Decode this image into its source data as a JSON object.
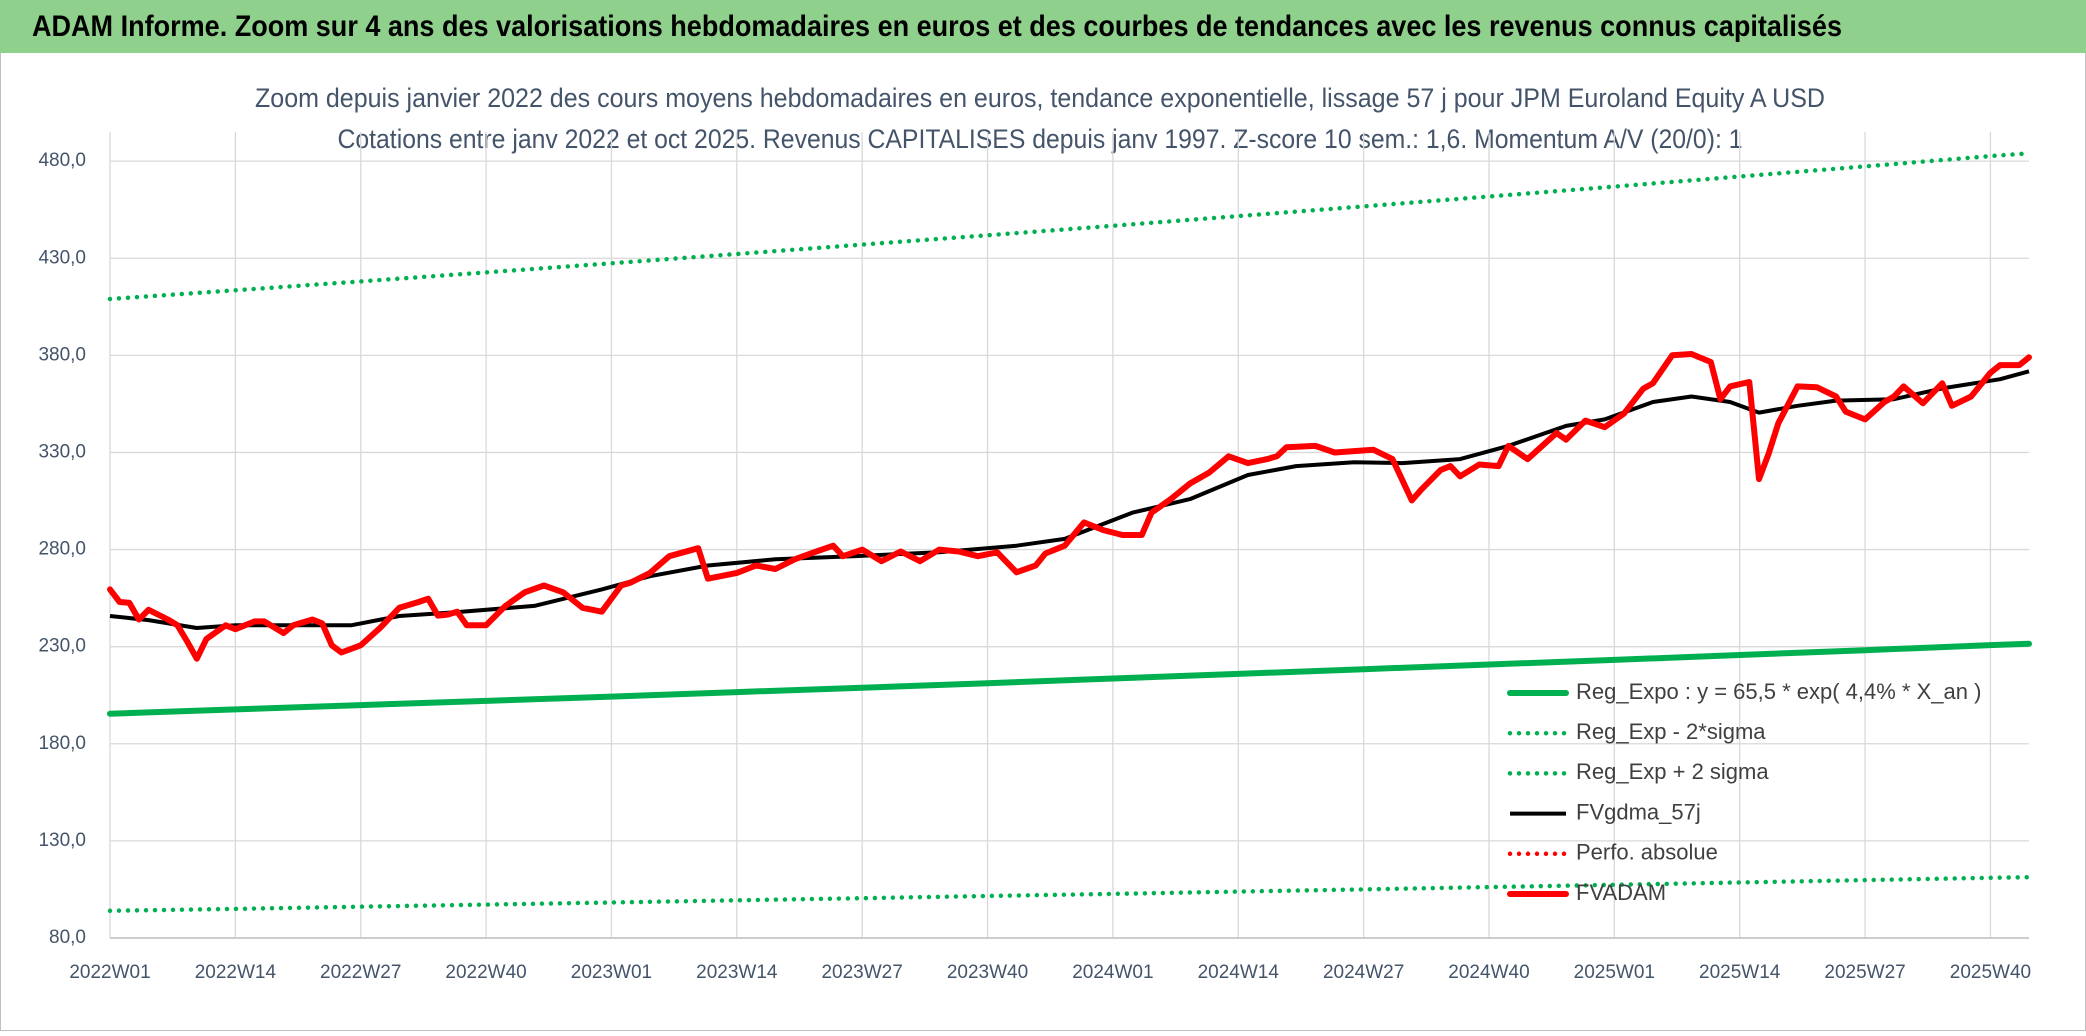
{
  "chart_data": {
    "type": "line",
    "title": "ADAM Informe. Zoom sur 4 ans des valorisations hebdomadaires en euros et des courbes de tendances avec les revenus connus capitalisés",
    "subtitle": [
      "Zoom depuis janvier 2022 des cours moyens hebdomadaires en euros, tendance exponentielle, lissage 57 j pour JPM Euroland Equity A USD",
      "Cotations entre janv 2022 et oct 2025. Revenus CAPITALISES depuis janv 1997. Z-score 10 sem.: 1,6. Momentum A/V (20/0): 1"
    ],
    "xlim": [
      0,
      199
    ],
    "xticks": [
      {
        "value": 0,
        "label": "2022W01"
      },
      {
        "value": 13,
        "label": "2022W14"
      },
      {
        "value": 26,
        "label": "2022W27"
      },
      {
        "value": 39,
        "label": "2022W40"
      },
      {
        "value": 52,
        "label": "2023W01"
      },
      {
        "value": 65,
        "label": "2023W14"
      },
      {
        "value": 78,
        "label": "2023W27"
      },
      {
        "value": 91,
        "label": "2023W40"
      },
      {
        "value": 104,
        "label": "2024W01"
      },
      {
        "value": 117,
        "label": "2024W14"
      },
      {
        "value": 130,
        "label": "2024W27"
      },
      {
        "value": 143,
        "label": "2024W40"
      },
      {
        "value": 156,
        "label": "2025W01"
      },
      {
        "value": 169,
        "label": "2025W14"
      },
      {
        "value": 182,
        "label": "2025W27"
      },
      {
        "value": 195,
        "label": "2025W40"
      }
    ],
    "ylim": [
      80,
      495
    ],
    "yticks": [
      {
        "value": 80,
        "label": "80,0"
      },
      {
        "value": 130,
        "label": "130,0"
      },
      {
        "value": 180,
        "label": "180,0"
      },
      {
        "value": 230,
        "label": "230,0"
      },
      {
        "value": 280,
        "label": "280,0"
      },
      {
        "value": 330,
        "label": "330,0"
      },
      {
        "value": 380,
        "label": "380,0"
      },
      {
        "value": 430,
        "label": "430,0"
      },
      {
        "value": 480,
        "label": "480,0"
      }
    ],
    "grid": true,
    "legend": "lower right",
    "series": [
      {
        "name": "Reg_Expo : y = 65,5 * exp( 4,4% *  X_an )",
        "color": "#00b050",
        "line_style": "thick",
        "x": [
          0,
          13,
          26,
          39,
          52,
          65,
          78,
          91,
          104,
          117,
          130,
          143,
          156,
          169,
          182,
          195,
          199
        ],
        "values": [
          195.5,
          197.7,
          199.9,
          202.1,
          204.3,
          206.6,
          208.9,
          211.2,
          213.6,
          216.0,
          218.4,
          220.8,
          223.2,
          225.7,
          228.2,
          230.8,
          231.5
        ]
      },
      {
        "name": "Reg_Exp - 2*sigma",
        "color": "#00b050",
        "line_style": "dotted",
        "x": [
          0,
          13,
          26,
          39,
          52,
          65,
          78,
          91,
          104,
          117,
          130,
          143,
          156,
          169,
          182,
          195,
          199
        ],
        "values": [
          94,
          95.0,
          96.1,
          97.2,
          98.3,
          99.4,
          100.5,
          101.6,
          102.7,
          103.9,
          105.0,
          106.2,
          107.4,
          108.6,
          109.8,
          111.0,
          111.3
        ]
      },
      {
        "name": "Reg_Exp + 2 sigma",
        "color": "#00b050",
        "line_style": "dotted",
        "x": [
          0,
          13,
          26,
          39,
          52,
          65,
          78,
          91,
          104,
          117,
          130,
          143,
          156,
          169,
          182,
          195,
          199
        ],
        "values": [
          409,
          413.5,
          418.1,
          422.7,
          427.4,
          432.2,
          437.0,
          441.8,
          446.7,
          451.7,
          456.7,
          461.8,
          466.9,
          472.1,
          477.3,
          482.6,
          484.0
        ]
      },
      {
        "name": "FVgdma_57j",
        "color": "#000000",
        "line_style": "solid",
        "x": [
          0,
          4,
          9,
          13,
          20,
          25,
          30,
          36,
          44,
          51,
          56,
          62,
          69,
          77,
          86,
          94,
          99,
          106,
          112,
          118,
          123,
          129,
          134,
          140,
          145,
          151,
          155,
          160,
          164,
          168,
          171,
          175,
          179,
          185,
          190,
          196,
          199
        ],
        "values": [
          245.8,
          243.7,
          239.6,
          241,
          241,
          241,
          245.8,
          247.8,
          251,
          259.5,
          266.3,
          271.8,
          275,
          276.6,
          278.6,
          282,
          285.5,
          299,
          306,
          318.4,
          323,
          325,
          324.5,
          326.6,
          333.4,
          343.7,
          347,
          356,
          358.8,
          356,
          350.5,
          354,
          356.7,
          357.4,
          363,
          367.7,
          371.8
        ]
      },
      {
        "name": "Perfo. absolue",
        "color": "#ff0000",
        "line_style": "dotted",
        "x": [],
        "values": []
      },
      {
        "name": "FVADAM",
        "color": "#ff0000",
        "line_style": "thick",
        "x": [
          0,
          1,
          2,
          3,
          4,
          6,
          7,
          8,
          9,
          10,
          12,
          13,
          15,
          16,
          18,
          19,
          21,
          22,
          23,
          24,
          26,
          28,
          30,
          32,
          33,
          34,
          35,
          36,
          37,
          39,
          41,
          43,
          45,
          47,
          49,
          51,
          53,
          54,
          56,
          58,
          61,
          62,
          65,
          67,
          69,
          71,
          73,
          75,
          76,
          78,
          80,
          82,
          84,
          86,
          88,
          90,
          92,
          94,
          96,
          97,
          99,
          101,
          103,
          105,
          107,
          108,
          110,
          112,
          114,
          116,
          118,
          120,
          121,
          122,
          125,
          127,
          129,
          131,
          133,
          135,
          136,
          138,
          139,
          140,
          142,
          144,
          145,
          147,
          150,
          151,
          153,
          155,
          157,
          159,
          160,
          162,
          164,
          166,
          167,
          168,
          170,
          171,
          172,
          173,
          175,
          177,
          179,
          180,
          182,
          184,
          185,
          186,
          188,
          190,
          191,
          193,
          195,
          196,
          198,
          199
        ],
        "values": [
          259.5,
          253,
          252.6,
          244,
          249,
          244,
          241,
          232.7,
          223.8,
          234,
          241,
          239,
          243,
          243,
          237,
          241,
          244,
          242,
          230.7,
          227,
          230.7,
          239.6,
          250,
          253,
          254.7,
          246,
          246.5,
          248,
          241,
          241,
          251,
          258,
          261.5,
          258,
          250,
          248,
          261.5,
          263,
          268,
          276.6,
          280.7,
          265,
          268,
          271.8,
          270,
          275,
          278.6,
          282,
          276.6,
          280,
          274,
          279,
          274,
          280,
          279,
          276.6,
          278.6,
          268.3,
          271.8,
          278,
          282,
          294,
          290,
          287.5,
          287.5,
          299,
          306,
          314,
          319.7,
          328,
          324.5,
          326.6,
          328,
          332.7,
          333.4,
          330,
          330.7,
          331.4,
          326.6,
          305.3,
          311,
          321,
          323,
          317.7,
          323.8,
          323,
          333.4,
          326.6,
          340,
          336.6,
          346.4,
          343,
          350,
          362.9,
          365.6,
          380,
          380.7,
          376.6,
          357.4,
          364,
          366.3,
          316.3,
          329.3,
          345,
          364,
          363.6,
          358.8,
          351,
          347,
          356,
          358.8,
          364,
          355.3,
          365.6,
          354,
          358.8,
          371,
          375,
          375,
          379
        ]
      }
    ]
  }
}
